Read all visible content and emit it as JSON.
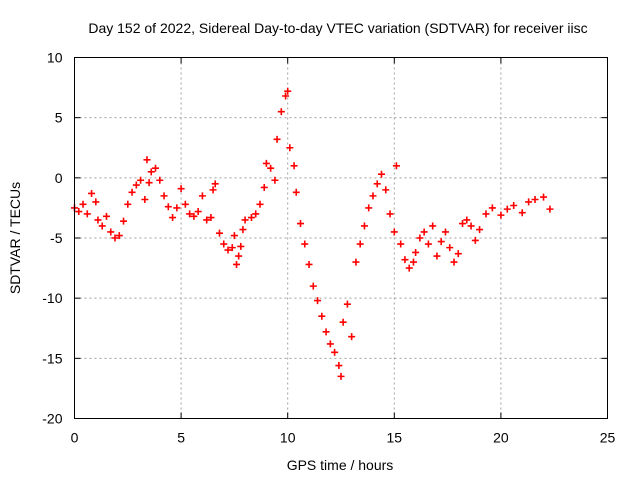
{
  "chart_data": {
    "type": "scatter",
    "title": "Day 152 of 2022, Sidereal Day-to-day VTEC variation (SDTVAR) for receiver iisc",
    "xlabel": "GPS time / hours",
    "ylabel": "SDTVAR / TECUs",
    "xlim": [
      0,
      25
    ],
    "ylim": [
      -20,
      10
    ],
    "xticks": [
      0,
      5,
      10,
      15,
      20,
      25
    ],
    "yticks": [
      10,
      5,
      0,
      -5,
      -10,
      -15,
      -20
    ],
    "grid": true,
    "marker": "+",
    "marker_color": "#ff0000",
    "series": [
      {
        "name": "SDTVAR",
        "points": [
          [
            0.0,
            -2.5
          ],
          [
            0.2,
            -2.8
          ],
          [
            0.4,
            -2.2
          ],
          [
            0.6,
            -3.0
          ],
          [
            0.8,
            -1.3
          ],
          [
            1.0,
            -2.0
          ],
          [
            1.1,
            -3.5
          ],
          [
            1.3,
            -4.0
          ],
          [
            1.5,
            -3.2
          ],
          [
            1.7,
            -4.5
          ],
          [
            1.9,
            -5.0
          ],
          [
            2.1,
            -4.8
          ],
          [
            2.3,
            -3.6
          ],
          [
            2.5,
            -2.2
          ],
          [
            2.7,
            -1.2
          ],
          [
            2.9,
            -0.6
          ],
          [
            3.1,
            -0.2
          ],
          [
            3.3,
            -1.8
          ],
          [
            3.5,
            -0.4
          ],
          [
            3.4,
            1.5
          ],
          [
            3.6,
            0.5
          ],
          [
            3.8,
            0.8
          ],
          [
            4.0,
            -0.2
          ],
          [
            4.2,
            -1.5
          ],
          [
            4.4,
            -2.4
          ],
          [
            4.6,
            -3.3
          ],
          [
            4.8,
            -2.5
          ],
          [
            5.0,
            -0.9
          ],
          [
            5.2,
            -2.2
          ],
          [
            5.4,
            -3.0
          ],
          [
            5.6,
            -3.2
          ],
          [
            5.8,
            -2.8
          ],
          [
            6.0,
            -1.5
          ],
          [
            6.2,
            -3.5
          ],
          [
            6.4,
            -3.3
          ],
          [
            6.5,
            -1.0
          ],
          [
            6.6,
            -0.5
          ],
          [
            6.8,
            -4.6
          ],
          [
            7.0,
            -5.5
          ],
          [
            7.2,
            -6.0
          ],
          [
            7.4,
            -5.8
          ],
          [
            7.5,
            -4.8
          ],
          [
            7.6,
            -7.2
          ],
          [
            7.7,
            -6.5
          ],
          [
            7.8,
            -5.7
          ],
          [
            7.9,
            -4.3
          ],
          [
            8.0,
            -3.5
          ],
          [
            8.3,
            -3.3
          ],
          [
            8.5,
            -3.0
          ],
          [
            8.7,
            -2.2
          ],
          [
            8.9,
            -0.8
          ],
          [
            9.0,
            1.2
          ],
          [
            9.2,
            0.8
          ],
          [
            9.4,
            -0.2
          ],
          [
            9.5,
            3.2
          ],
          [
            9.7,
            5.5
          ],
          [
            9.9,
            6.8
          ],
          [
            10.0,
            7.2
          ],
          [
            10.1,
            2.5
          ],
          [
            10.3,
            1.0
          ],
          [
            10.4,
            -1.2
          ],
          [
            10.6,
            -3.8
          ],
          [
            10.8,
            -5.5
          ],
          [
            11.0,
            -7.2
          ],
          [
            11.2,
            -9.0
          ],
          [
            11.4,
            -10.2
          ],
          [
            11.6,
            -11.5
          ],
          [
            11.8,
            -12.8
          ],
          [
            12.0,
            -13.8
          ],
          [
            12.2,
            -14.5
          ],
          [
            12.4,
            -15.6
          ],
          [
            12.5,
            -16.5
          ],
          [
            12.6,
            -12.0
          ],
          [
            12.8,
            -10.5
          ],
          [
            13.0,
            -13.2
          ],
          [
            13.2,
            -7.0
          ],
          [
            13.4,
            -5.5
          ],
          [
            13.6,
            -4.0
          ],
          [
            13.8,
            -2.5
          ],
          [
            14.0,
            -1.5
          ],
          [
            14.2,
            -0.5
          ],
          [
            14.4,
            0.3
          ],
          [
            14.6,
            -1.0
          ],
          [
            14.8,
            -3.0
          ],
          [
            15.0,
            -4.5
          ],
          [
            15.1,
            1.0
          ],
          [
            15.3,
            -5.5
          ],
          [
            15.5,
            -6.8
          ],
          [
            15.7,
            -7.5
          ],
          [
            15.9,
            -7.0
          ],
          [
            16.0,
            -6.2
          ],
          [
            16.2,
            -5.0
          ],
          [
            16.4,
            -4.5
          ],
          [
            16.6,
            -5.5
          ],
          [
            16.8,
            -4.0
          ],
          [
            17.0,
            -6.5
          ],
          [
            17.2,
            -5.3
          ],
          [
            17.4,
            -4.5
          ],
          [
            17.6,
            -5.8
          ],
          [
            17.8,
            -7.0
          ],
          [
            18.0,
            -6.3
          ],
          [
            18.2,
            -3.8
          ],
          [
            18.4,
            -3.5
          ],
          [
            18.6,
            -4.0
          ],
          [
            18.8,
            -5.2
          ],
          [
            19.0,
            -4.3
          ],
          [
            19.3,
            -3.0
          ],
          [
            19.6,
            -2.5
          ],
          [
            20.0,
            -3.1
          ],
          [
            20.3,
            -2.6
          ],
          [
            20.6,
            -2.3
          ],
          [
            21.0,
            -2.9
          ],
          [
            21.3,
            -2.0
          ],
          [
            21.6,
            -1.8
          ],
          [
            22.0,
            -1.6
          ],
          [
            22.3,
            -2.6
          ]
        ]
      }
    ]
  }
}
